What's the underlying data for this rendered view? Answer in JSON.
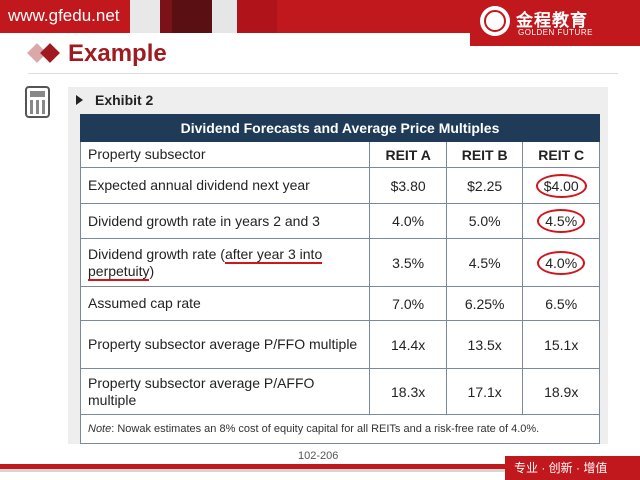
{
  "header": {
    "site_url": "www.gfedu.net",
    "logo_cn": "金程教育",
    "logo_en": "GOLDEN FUTURE"
  },
  "title": "Example",
  "exhibit_label": "Exhibit 2",
  "table": {
    "caption": "Dividend Forecasts and Average Price Multiples",
    "header_label": "Property subsector",
    "columns": [
      "REIT A",
      "REIT B",
      "REIT C"
    ],
    "rows": [
      {
        "label": "Expected annual dividend next year",
        "values": [
          "$3.80",
          "$2.25",
          "$4.00"
        ]
      },
      {
        "label": "Dividend growth rate in years 2 and 3",
        "values": [
          "4.0%",
          "5.0%",
          "4.5%"
        ]
      },
      {
        "label_pre": "Dividend growth rate (",
        "label_mark": "after year 3 into perpetuity",
        "label_post": ")",
        "values": [
          "3.5%",
          "4.5%",
          "4.0%"
        ]
      },
      {
        "label": "Assumed cap rate",
        "values": [
          "7.0%",
          "6.25%",
          "6.5%"
        ]
      },
      {
        "label": "Property subsector average P/FFO multiple",
        "values": [
          "14.4x",
          "13.5x",
          "15.1x"
        ]
      },
      {
        "label": "Property subsector average P/AFFO multiple",
        "values": [
          "18.3x",
          "17.1x",
          "18.9x"
        ]
      }
    ],
    "note_prefix": "Note",
    "note_text": ": Nowak estimates an 8% cost of equity capital for all REITs and a risk-free rate of 4.0%."
  },
  "page_number": "102-206",
  "footer_slogan": "专业 · 创新 · 增值",
  "colors": {
    "brand_red": "#c1181d",
    "title_red": "#9e1b1f",
    "table_header": "#1f3b57",
    "annotation_red": "#d0161d"
  }
}
